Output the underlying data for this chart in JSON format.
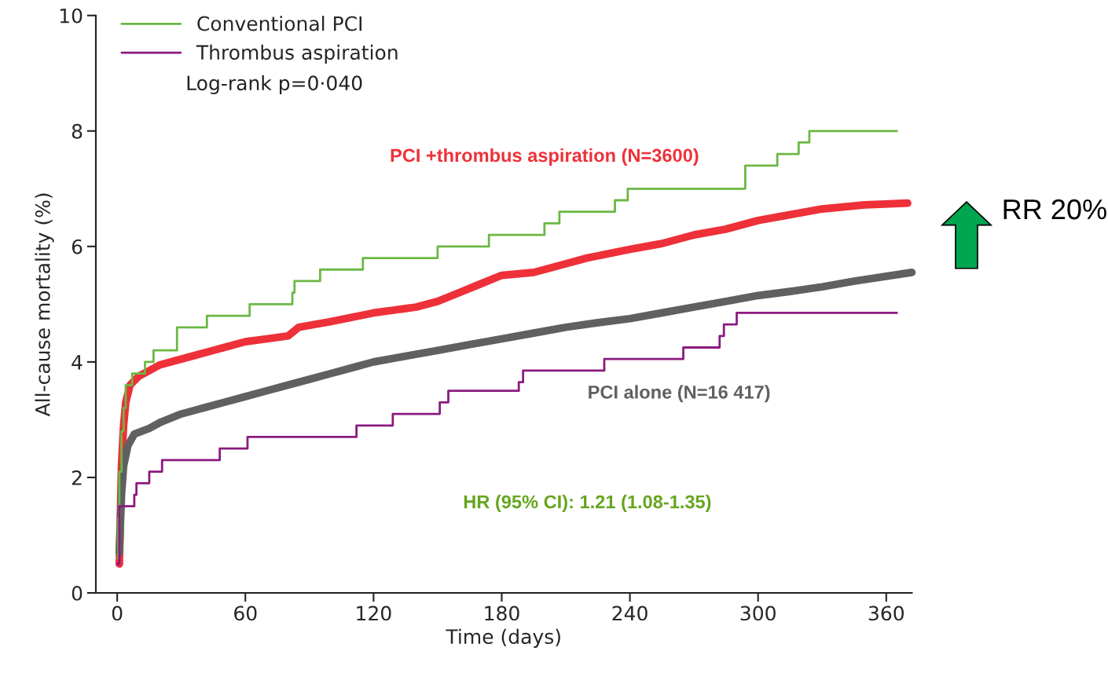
{
  "chart_data": {
    "type": "line",
    "xlabel": "Time (days)",
    "ylabel": "All-cause mortality (%)",
    "xlim": [
      -10,
      372
    ],
    "ylim": [
      0,
      10
    ],
    "xticks": [
      0,
      60,
      120,
      180,
      240,
      300,
      360
    ],
    "yticks": [
      0,
      2,
      4,
      6,
      8,
      10
    ],
    "grid": false,
    "legend": "top left",
    "marker": "none",
    "line_style": "solid",
    "series": [
      {
        "name": "Conventional PCI",
        "type": "step",
        "color": "#6bb844",
        "x": [
          0,
          0.5,
          1,
          2,
          3,
          4,
          7,
          13,
          17,
          28,
          42,
          62,
          82,
          83,
          95,
          115,
          150,
          174,
          200,
          207,
          233,
          239,
          294,
          309,
          319,
          324,
          365
        ],
        "values": [
          0.6,
          1.3,
          2.1,
          2.8,
          3.2,
          3.6,
          3.8,
          4.0,
          4.2,
          4.6,
          4.8,
          5.0,
          5.2,
          5.4,
          5.6,
          5.8,
          6.0,
          6.2,
          6.4,
          6.6,
          6.8,
          7.0,
          7.4,
          7.6,
          7.8,
          8.0,
          8.0
        ]
      },
      {
        "name": "Thrombus aspiration",
        "type": "step",
        "color": "#8b1a7f",
        "x": [
          0,
          1,
          8,
          9,
          15,
          21,
          48,
          61,
          112,
          129,
          151,
          155,
          188,
          190,
          228,
          265,
          282,
          284,
          290,
          365
        ],
        "values": [
          0.5,
          1.5,
          1.7,
          1.9,
          2.1,
          2.3,
          2.5,
          2.7,
          2.9,
          3.1,
          3.3,
          3.5,
          3.65,
          3.85,
          4.05,
          4.25,
          4.45,
          4.65,
          4.85,
          4.85
        ]
      },
      {
        "name": "PCI +thrombus aspiration (N=3600)",
        "color": "#ee3038",
        "x": [
          1,
          2,
          3,
          4,
          6,
          10,
          15,
          20,
          30,
          40,
          50,
          60,
          70,
          80,
          85,
          100,
          120,
          130,
          140,
          150,
          160,
          170,
          180,
          195,
          210,
          220,
          240,
          255,
          270,
          285,
          300,
          315,
          330,
          350,
          370
        ],
        "values": [
          0.5,
          2.2,
          2.9,
          3.3,
          3.6,
          3.75,
          3.85,
          3.95,
          4.05,
          4.15,
          4.25,
          4.35,
          4.4,
          4.45,
          4.6,
          4.7,
          4.85,
          4.9,
          4.95,
          5.05,
          5.2,
          5.35,
          5.5,
          5.55,
          5.7,
          5.8,
          5.95,
          6.05,
          6.2,
          6.3,
          6.45,
          6.55,
          6.65,
          6.72,
          6.75
        ]
      },
      {
        "name": "PCI alone (N=16 417)",
        "color": "#606060",
        "x": [
          1,
          2,
          3,
          5,
          8,
          15,
          20,
          30,
          40,
          50,
          60,
          70,
          80,
          90,
          100,
          110,
          120,
          135,
          150,
          165,
          180,
          195,
          210,
          225,
          240,
          255,
          270,
          285,
          300,
          315,
          330,
          345,
          372
        ],
        "values": [
          0.7,
          1.7,
          2.2,
          2.55,
          2.75,
          2.85,
          2.95,
          3.1,
          3.2,
          3.3,
          3.4,
          3.5,
          3.6,
          3.7,
          3.8,
          3.9,
          4.0,
          4.1,
          4.2,
          4.3,
          4.4,
          4.5,
          4.6,
          4.68,
          4.75,
          4.85,
          4.95,
          5.05,
          5.15,
          5.22,
          5.3,
          5.4,
          5.55
        ]
      }
    ],
    "annotations": [
      "Log-rank p=0·040",
      "HR (95% CI): 1.21 (1.08-1.35)",
      "RR 20%"
    ]
  }
}
